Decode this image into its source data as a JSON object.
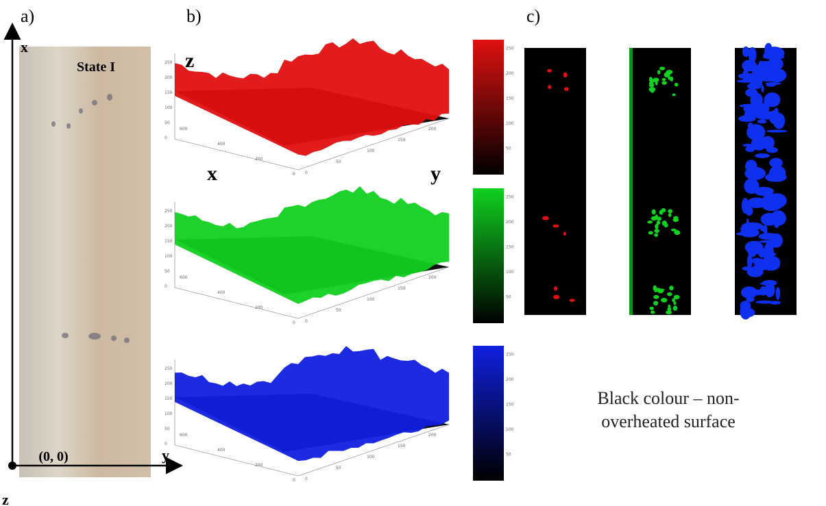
{
  "panel_labels": [
    "a)",
    "b)",
    "c)"
  ],
  "panel_a": {
    "axis_x": "x",
    "axis_y": "y",
    "axis_z": "z",
    "state": "State I",
    "origin": "(0, 0)"
  },
  "panel_b": {
    "axis_z": "z",
    "axis_x": "x",
    "axis_y": "y",
    "z_ticks": [
      0,
      50,
      100,
      150,
      200,
      250
    ],
    "x_ticks": [
      0,
      200,
      400,
      600
    ],
    "y_ticks": [
      0,
      50,
      100,
      150,
      200
    ],
    "colorbar_ticks": [
      50,
      100,
      150,
      200,
      250
    ],
    "plots": [
      {
        "color": "#e01010"
      },
      {
        "color": "#10d020"
      },
      {
        "color": "#1020e0"
      }
    ]
  },
  "panel_c": {
    "images": [
      {
        "color": "#e01010"
      },
      {
        "color": "#10d020"
      },
      {
        "color": "#1030f0"
      }
    ],
    "note_lines": [
      "Black colour – non-",
      "overheated surface"
    ]
  }
}
